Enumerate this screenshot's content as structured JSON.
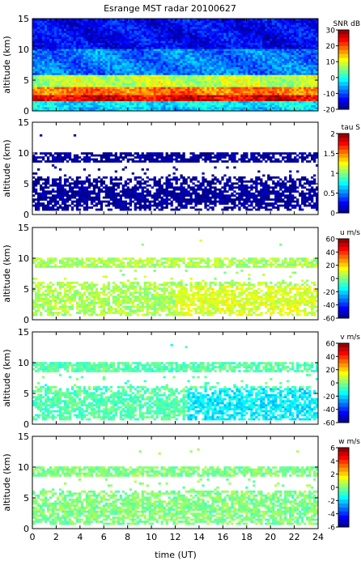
{
  "chart_data": {
    "title": "Esrange MST radar 20100627",
    "type": "heatmap",
    "xlabel": "time (UT)",
    "xlim": [
      0,
      24
    ],
    "xticks": [
      0,
      2,
      4,
      6,
      8,
      10,
      12,
      14,
      16,
      18,
      20,
      22,
      24
    ],
    "panels": [
      {
        "ylabel": "altitude (km)",
        "ylim": [
          0,
          15
        ],
        "yticks": [
          0,
          5,
          10,
          15
        ],
        "colorbar_label": "SNR dB",
        "clim": [
          -20,
          30
        ],
        "cticks": [
          30,
          20,
          10,
          0,
          -10,
          -20
        ],
        "field": "snr",
        "approx_profile_km": [
          {
            "alt_range": [
              0.5,
              1.5
            ],
            "value": -2
          },
          {
            "alt_range": [
              1.5,
              2.5
            ],
            "value": 25
          },
          {
            "alt_range": [
              2.5,
              4
            ],
            "value": 18
          },
          {
            "alt_range": [
              4,
              6
            ],
            "value": 8
          },
          {
            "alt_range": [
              6,
              10
            ],
            "value": -8
          },
          {
            "alt_range": [
              10,
              15
            ],
            "value": -14
          }
        ]
      },
      {
        "ylabel": "altitude (km)",
        "ylim": [
          0,
          15
        ],
        "yticks": [
          0,
          5,
          10,
          15
        ],
        "colorbar_label": "tau S",
        "clim": [
          0,
          2
        ],
        "cticks": [
          2,
          1.5,
          1,
          0.5,
          0
        ],
        "field": "tau",
        "approx_value": 0.05
      },
      {
        "ylabel": "altitude (km)",
        "ylim": [
          0,
          15
        ],
        "yticks": [
          0,
          5,
          10,
          15
        ],
        "colorbar_label": "u m/s",
        "clim": [
          -60,
          60
        ],
        "cticks": [
          60,
          40,
          20,
          0,
          -20,
          -40,
          -60
        ],
        "field": "u",
        "approx_value": 5
      },
      {
        "ylabel": "altitude (km)",
        "ylim": [
          0,
          15
        ],
        "yticks": [
          0,
          5,
          10,
          15
        ],
        "colorbar_label": "v m/s",
        "clim": [
          -60,
          60
        ],
        "cticks": [
          60,
          40,
          20,
          0,
          -20,
          -40,
          -60
        ],
        "field": "v",
        "approx_value": -5
      },
      {
        "ylabel": "altitude (km)",
        "ylim": [
          0,
          15
        ],
        "yticks": [
          0,
          5,
          10,
          15
        ],
        "colorbar_label": "w m/s",
        "clim": [
          -6,
          6
        ],
        "cticks": [
          6,
          4,
          2,
          0,
          -2,
          -4,
          -6
        ],
        "field": "w",
        "approx_value": 0
      }
    ]
  }
}
